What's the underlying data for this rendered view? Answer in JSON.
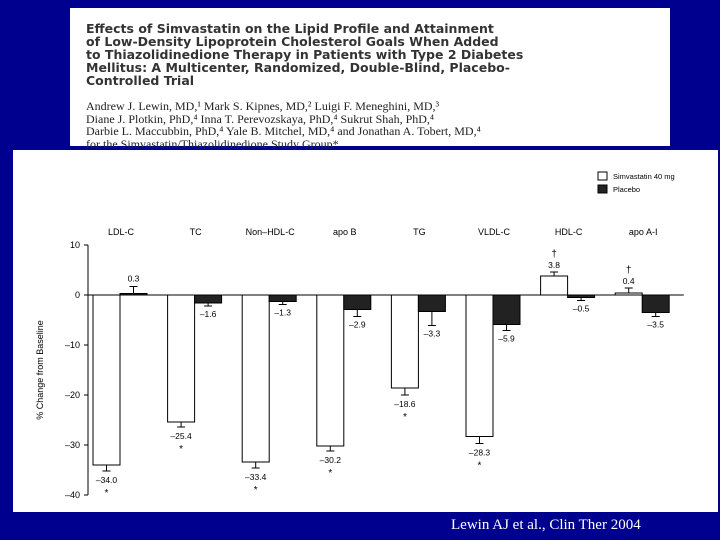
{
  "header": {
    "title": "Effects of Simvastatin on the Lipid Profile and Attainment\nof Low-Density Lipoprotein Cholesterol Goals When Added\nto Thiazolidinedione Therapy in Patients with Type 2 Diabetes\nMellitus: A Multicenter, Randomized, Double-Blind, Placebo-\nControlled Trial",
    "authors": "Andrew J. Lewin, MD,¹ Mark S. Kipnes, MD,² Luigi F. Meneghini, MD,³\nDiane J. Plotkin, PhD,⁴ Inna T. Perevozskaya, PhD,⁴ Sukrut Shah, PhD,⁴\nDarbie L. Maccubbin, PhD,⁴ Yale B. Mitchel, MD,⁴ and Jonathan A. Tobert, MD,⁴\nfor the Simvastatin/Thiazolidinedione Study Group*"
  },
  "citation": "Lewin AJ et al., Clin Ther 2004",
  "colors": {
    "background": "#00008f",
    "placebo_bar": "#222222",
    "simvastatin_bar": "#ffffff"
  },
  "chart_data": {
    "type": "bar",
    "categories": [
      "LDL-C",
      "TC",
      "Non–HDL-C",
      "apo B",
      "TG",
      "VLDL-C",
      "HDL-C",
      "apo A-I"
    ],
    "series": [
      {
        "name": "Simvastatin 40 mg",
        "values": [
          -34.0,
          -25.4,
          -33.4,
          -30.2,
          -18.6,
          -28.3,
          3.8,
          0.4
        ],
        "labels": [
          "–34.0",
          "–25.4",
          "–33.4",
          "–30.2",
          "–18.6",
          "–28.3",
          "3.8",
          "0.4"
        ],
        "markers": [
          "*",
          "*",
          "*",
          "*",
          "*",
          "*",
          "†",
          "†"
        ]
      },
      {
        "name": "Placebo",
        "values": [
          0.3,
          -1.6,
          -1.3,
          -2.9,
          -3.3,
          -5.9,
          -0.5,
          -3.5
        ],
        "labels": [
          "0.3",
          "–1.6",
          "–1.3",
          "–2.9",
          "–3.3",
          "–5.9",
          "–0.5",
          "–3.5"
        ]
      }
    ],
    "ylabel": "% Change from Baseline",
    "yticks": [
      10,
      0,
      -10,
      -20,
      -30,
      -40
    ],
    "ytick_labels": [
      "10",
      "0",
      "–10",
      "–20",
      "–30",
      "–40"
    ],
    "ylim": [
      -40,
      10
    ],
    "legend_position": "top-right",
    "grid": false
  }
}
